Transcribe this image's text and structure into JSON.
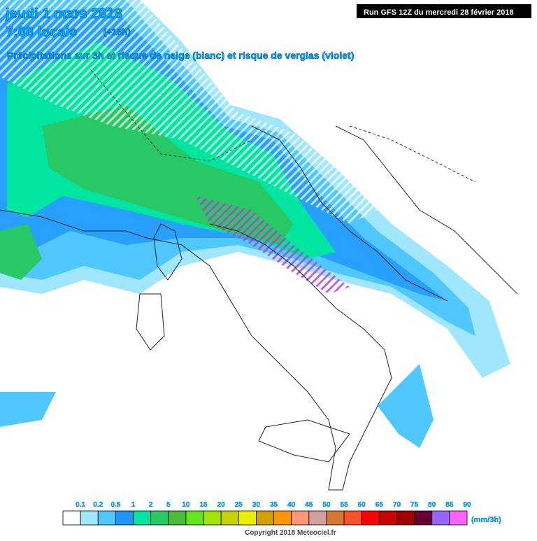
{
  "header": {
    "date": "jeudi 1 mars 2018",
    "time": "7:00 locale",
    "lead": "(+18h)",
    "subtitle": "Précipitations sur 3h et risque de neige (blanc) et risque de verglas (violet)",
    "run": "Run GFS 12Z du mercredi 28 février 2018"
  },
  "legend": {
    "labels": [
      "0.1",
      "0.2",
      "0.5",
      "1",
      "2",
      "5",
      "10",
      "15",
      "20",
      "25",
      "30",
      "35",
      "40",
      "45",
      "50",
      "55",
      "60",
      "65",
      "70",
      "75",
      "80",
      "85",
      "90"
    ],
    "colors": [
      "#ffffff",
      "#a0e6ff",
      "#50c8ff",
      "#1e96ff",
      "#00e6a0",
      "#28c864",
      "#46be3c",
      "#64e61e",
      "#a0e600",
      "#c8d200",
      "#e6f000",
      "#d2a000",
      "#ff9600",
      "#ff9678",
      "#d2a0a0",
      "#d27832",
      "#ff5028",
      "#ff0000",
      "#c80000",
      "#a00000",
      "#640032",
      "#9664ff",
      "#ff64ff"
    ],
    "unit": "(mm/3h)"
  },
  "footer": {
    "copyright": "Copyright 2018 Meteociel.fr"
  }
}
